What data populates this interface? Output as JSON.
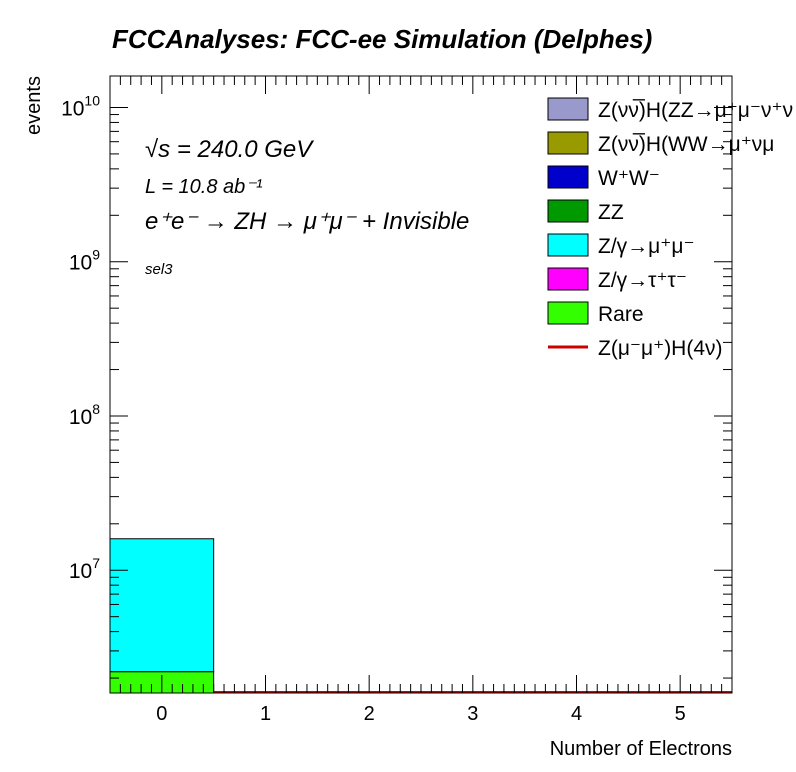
{
  "chart_data": {
    "type": "bar",
    "title": "FCCAnalyses: FCC-ee Simulation (Delphes)",
    "xlabel": "Number of Electrons",
    "ylabel": "events",
    "xlim": [
      -0.5,
      5.5
    ],
    "ylim": [
      1600000,
      16000000000
    ],
    "yscale": "log",
    "x_ticks": [
      "0",
      "1",
      "2",
      "3",
      "4",
      "5"
    ],
    "y_ticks": [
      {
        "base": "10",
        "exp": "7",
        "value": 10000000
      },
      {
        "base": "10",
        "exp": "8",
        "value": 100000000
      },
      {
        "base": "10",
        "exp": "9",
        "value": 1000000000
      },
      {
        "base": "10",
        "exp": "10",
        "value": 10000000000
      }
    ],
    "categories": [
      "0",
      "1",
      "2",
      "3",
      "4",
      "5"
    ],
    "stack_floor": 1600000,
    "series": [
      {
        "name": "Rare",
        "color": "#33ff00",
        "values": [
          2200000,
          0,
          0,
          0,
          0,
          0
        ]
      },
      {
        "name": "Z/γ→μ⁺μ⁻",
        "color": "#00ffff",
        "values": [
          16000000,
          0,
          0,
          0,
          0,
          0
        ]
      }
    ],
    "signal_line": {
      "name": "Z(μ⁻μ⁺)H(4ν)",
      "color": "#cc0000"
    },
    "legend_position": "top-right",
    "legend": [
      {
        "label": "Z(νν̅)H(ZZ→μ⁺μ⁻ν⁺ν",
        "color": "#9999cc",
        "kind": "box"
      },
      {
        "label": "Z(νν̅)H(WW→μ⁺νμ",
        "color": "#999900",
        "kind": "box"
      },
      {
        "label": "W⁺W⁻",
        "color": "#0000cc",
        "kind": "box"
      },
      {
        "label": "ZZ",
        "color": "#009900",
        "kind": "box"
      },
      {
        "label": "Z/γ→μ⁺μ⁻",
        "color": "#00ffff",
        "kind": "box"
      },
      {
        "label": "Z/γ→τ⁺τ⁻",
        "color": "#ff00ff",
        "kind": "box"
      },
      {
        "label": "Rare",
        "color": "#33ff00",
        "kind": "box"
      },
      {
        "label": "Z(μ⁻μ⁺)H(4ν)",
        "color": "#cc0000",
        "kind": "line"
      }
    ],
    "annotations": {
      "energy": "√s = 240.0 GeV",
      "lumi": "L = 10.8 ab⁻¹",
      "process": "e⁺e⁻ → ZH → μ⁺μ⁻ + Invisible",
      "selection": "sel3"
    }
  }
}
